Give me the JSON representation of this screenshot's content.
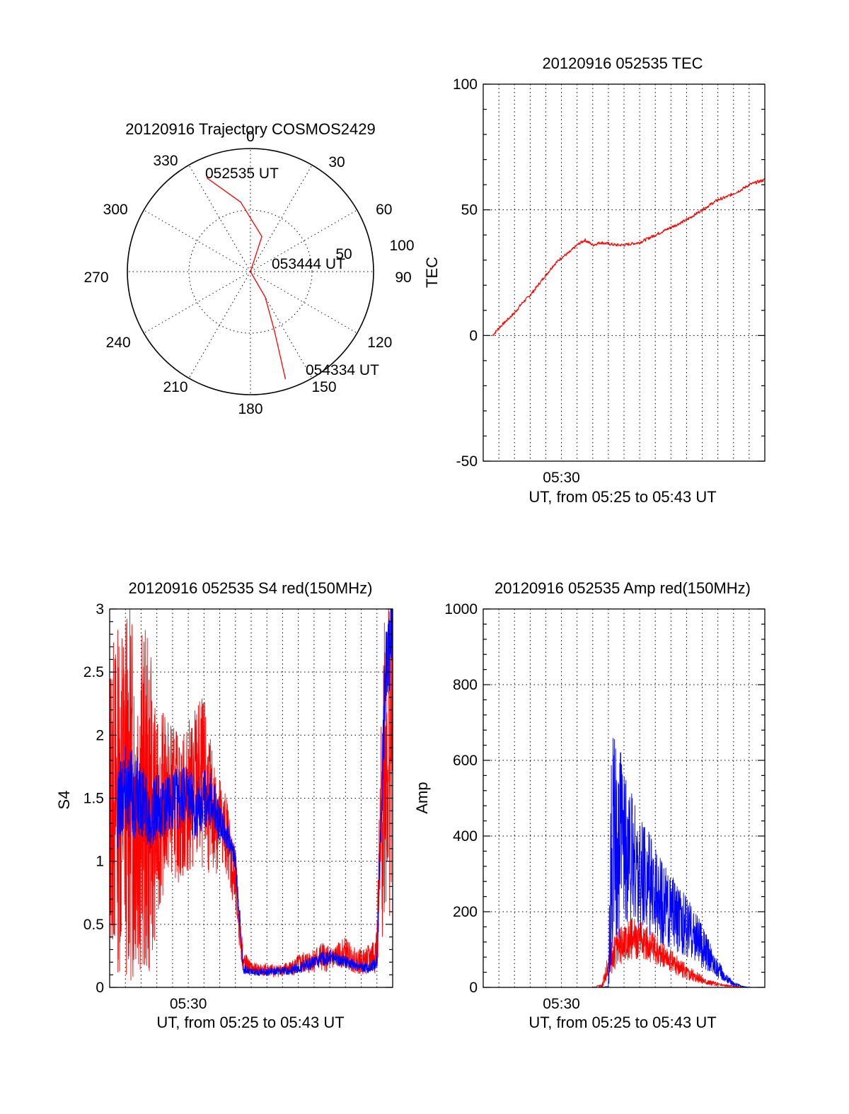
{
  "colors": {
    "red": "#ff0000",
    "blue": "#0000ff",
    "axis": "#000000"
  },
  "chart_data": [
    {
      "type": "polar",
      "title": "20120916 Trajectory COSMOS2429",
      "angle_labels": [
        "0",
        "30",
        "60",
        "90",
        "120",
        "150",
        "180",
        "210",
        "240",
        "270",
        "300",
        "330"
      ],
      "radial_labels": [
        "50",
        "100"
      ],
      "rlim": [
        0,
        100
      ],
      "series": [
        {
          "color": "#ff0000",
          "points": [
            [
              335,
              84
            ],
            [
              352,
              57
            ],
            [
              18,
              30
            ],
            [
              90,
              0
            ],
            [
              150,
              24
            ],
            [
              158,
              52
            ],
            [
              162,
              92
            ]
          ]
        }
      ],
      "annotations": [
        {
          "text": "052535 UT",
          "azimuth": 337,
          "elevation": 85
        },
        {
          "text": "053444 UT",
          "azimuth": 100,
          "elevation": 24
        },
        {
          "text": "054334 UT",
          "azimuth": 155,
          "elevation": 92
        }
      ]
    },
    {
      "type": "line",
      "title": "20120916 052535 TEC",
      "xlabel": "UT, from 05:25 to 05:43 UT",
      "ylabel": "TEC",
      "xlim": [
        0,
        18
      ],
      "ylim": [
        -50,
        100
      ],
      "yticks": [
        -50,
        0,
        50,
        100
      ],
      "xticks": [
        {
          "value": 5,
          "label": "05:30"
        }
      ],
      "x_gridlines": [
        1,
        2,
        3,
        4,
        5,
        6,
        7,
        8,
        9,
        10,
        11,
        12,
        13,
        14,
        15,
        16,
        17
      ],
      "x_unit": "minutes after 05:25 UT",
      "series": [
        {
          "name": "",
          "color": "#ff0000",
          "x": [
            0.6,
            1,
            1.5,
            2,
            2.5,
            3,
            3.5,
            4,
            4.5,
            5,
            5.5,
            6,
            6.5,
            7,
            7.5,
            8,
            8.5,
            9,
            9.5,
            10,
            10.5,
            11,
            11.5,
            12,
            12.5,
            13,
            13.5,
            14,
            14.5,
            15,
            15.5,
            16,
            16.5,
            17,
            17.5,
            18
          ],
          "y": [
            0,
            3,
            6,
            9,
            13,
            16,
            20,
            24,
            28,
            31,
            33,
            36,
            38,
            36,
            37,
            36.5,
            36,
            36,
            36.5,
            37,
            38.5,
            40,
            41.5,
            43,
            44.5,
            46,
            48,
            50,
            52,
            54,
            55,
            56.5,
            58,
            60,
            61,
            62
          ]
        }
      ]
    },
    {
      "type": "line",
      "title": "20120916 052535 S4 red(150MHz)",
      "xlabel": "UT, from 05:25 to 05:43 UT",
      "ylabel": "S4",
      "xlim": [
        0,
        18
      ],
      "ylim": [
        0,
        3
      ],
      "yticks": [
        "0",
        "0.5",
        "1",
        "1.5",
        "2",
        "2.5",
        "3"
      ],
      "xticks": [
        {
          "value": 5,
          "label": "05:30"
        }
      ],
      "x_gridlines": [
        1,
        2,
        3,
        4,
        5,
        6,
        7,
        8,
        9,
        10,
        11,
        12,
        13,
        14,
        15,
        16,
        17
      ],
      "x_unit": "minutes after 05:25 UT",
      "series": [
        {
          "name": "",
          "color": "#ff0000",
          "x": [
            0,
            0.5,
            1,
            1.5,
            2,
            2.5,
            3,
            3.5,
            4,
            4.5,
            5,
            5.5,
            6,
            6.5,
            7,
            7.5,
            8,
            8.5,
            9,
            9.5,
            10,
            10.5,
            11,
            11.5,
            12,
            12.5,
            13,
            13.5,
            14,
            14.5,
            15,
            15.5,
            16,
            16.5,
            17,
            17.5,
            18
          ],
          "y": [
            1.5,
            1.5,
            1.6,
            1.5,
            1.5,
            1.4,
            1.3,
            1.5,
            1.5,
            1.4,
            1.5,
            1.6,
            1.6,
            1.4,
            1.3,
            1.2,
            0.8,
            0.2,
            0.15,
            0.14,
            0.14,
            0.13,
            0.14,
            0.15,
            0.18,
            0.2,
            0.22,
            0.24,
            0.22,
            0.25,
            0.28,
            0.22,
            0.2,
            0.22,
            0.3,
            2.0,
            2.0
          ],
          "noise": [
            1.2,
            1.4,
            1.5,
            1.5,
            1.4,
            1.4,
            0.8,
            0.7,
            0.6,
            0.6,
            0.6,
            0.7,
            0.7,
            0.5,
            0.4,
            0.3,
            0.3,
            0.1,
            0.05,
            0.05,
            0.05,
            0.05,
            0.05,
            0.06,
            0.08,
            0.09,
            0.1,
            0.12,
            0.1,
            0.1,
            0.12,
            0.1,
            0.1,
            0.12,
            0.2,
            1.5,
            1.5
          ]
        },
        {
          "name": "",
          "color": "#0000ff",
          "x": [
            0.5,
            1,
            1.5,
            2,
            2.5,
            3,
            3.5,
            4,
            4.5,
            5,
            5.5,
            6,
            6.5,
            7,
            7.5,
            8,
            8.5,
            9,
            9.5,
            10,
            10.5,
            11,
            11.5,
            12,
            12.5,
            13,
            13.5,
            14,
            14.5,
            15,
            15.5,
            16,
            16.5,
            17,
            17.5,
            18
          ],
          "y": [
            1.5,
            1.6,
            1.5,
            1.5,
            1.4,
            1.4,
            1.4,
            1.5,
            1.5,
            1.5,
            1.4,
            1.5,
            1.5,
            1.3,
            1.2,
            1.0,
            0.15,
            0.12,
            0.12,
            0.12,
            0.13,
            0.13,
            0.14,
            0.15,
            0.18,
            0.2,
            0.22,
            0.24,
            0.22,
            0.2,
            0.18,
            0.16,
            0.15,
            0.2,
            2.4,
            2.8
          ],
          "noise": [
            0.4,
            0.4,
            0.35,
            0.3,
            0.3,
            0.3,
            0.25,
            0.25,
            0.25,
            0.25,
            0.25,
            0.25,
            0.2,
            0.15,
            0.12,
            0.1,
            0.04,
            0.03,
            0.03,
            0.03,
            0.03,
            0.03,
            0.04,
            0.04,
            0.05,
            0.05,
            0.06,
            0.06,
            0.05,
            0.05,
            0.05,
            0.04,
            0.04,
            0.05,
            0.4,
            0.3
          ]
        }
      ]
    },
    {
      "type": "line",
      "title": "20120916 052535 Amp red(150MHz)",
      "xlabel": "UT, from 05:25 to 05:43 UT",
      "ylabel": "Amp",
      "xlim": [
        0,
        18
      ],
      "ylim": [
        0,
        1000
      ],
      "yticks": [
        0,
        200,
        400,
        600,
        800,
        1000
      ],
      "xticks": [
        {
          "value": 5,
          "label": "05:30"
        }
      ],
      "x_gridlines": [
        1,
        2,
        3,
        4,
        5,
        6,
        7,
        8,
        9,
        10,
        11,
        12,
        13,
        14,
        15,
        16,
        17
      ],
      "x_unit": "minutes after 05:25 UT",
      "series": [
        {
          "name": "",
          "color": "#ff0000",
          "x": [
            0,
            7,
            7.6,
            8,
            8.5,
            9,
            9.5,
            10,
            10.5,
            11,
            11.5,
            12,
            12.5,
            13,
            13.5,
            14,
            14.5,
            15,
            15.5,
            16,
            16.5,
            17,
            18
          ],
          "y": [
            0,
            0,
            5,
            60,
            100,
            120,
            130,
            125,
            115,
            100,
            85,
            70,
            55,
            40,
            30,
            20,
            12,
            8,
            5,
            3,
            1,
            0,
            0
          ],
          "noise": [
            0,
            0,
            5,
            40,
            50,
            55,
            55,
            50,
            45,
            40,
            35,
            30,
            25,
            20,
            15,
            10,
            8,
            5,
            3,
            2,
            1,
            0,
            0
          ]
        },
        {
          "name": "",
          "color": "#0000ff",
          "x": [
            0,
            7.5,
            8,
            8.2,
            8.5,
            9,
            9.5,
            10,
            10.5,
            11,
            11.5,
            12,
            12.5,
            13,
            13.5,
            14,
            14.5,
            15,
            15.5,
            16,
            16.5,
            17,
            18
          ],
          "y": [
            0,
            0,
            2,
            350,
            400,
            360,
            330,
            300,
            280,
            250,
            220,
            200,
            180,
            160,
            140,
            110,
            80,
            50,
            25,
            10,
            3,
            0,
            0
          ],
          "noise": [
            0,
            0,
            2,
            300,
            280,
            220,
            180,
            160,
            140,
            120,
            110,
            100,
            90,
            80,
            70,
            60,
            40,
            25,
            12,
            6,
            2,
            0,
            0
          ]
        }
      ]
    }
  ]
}
